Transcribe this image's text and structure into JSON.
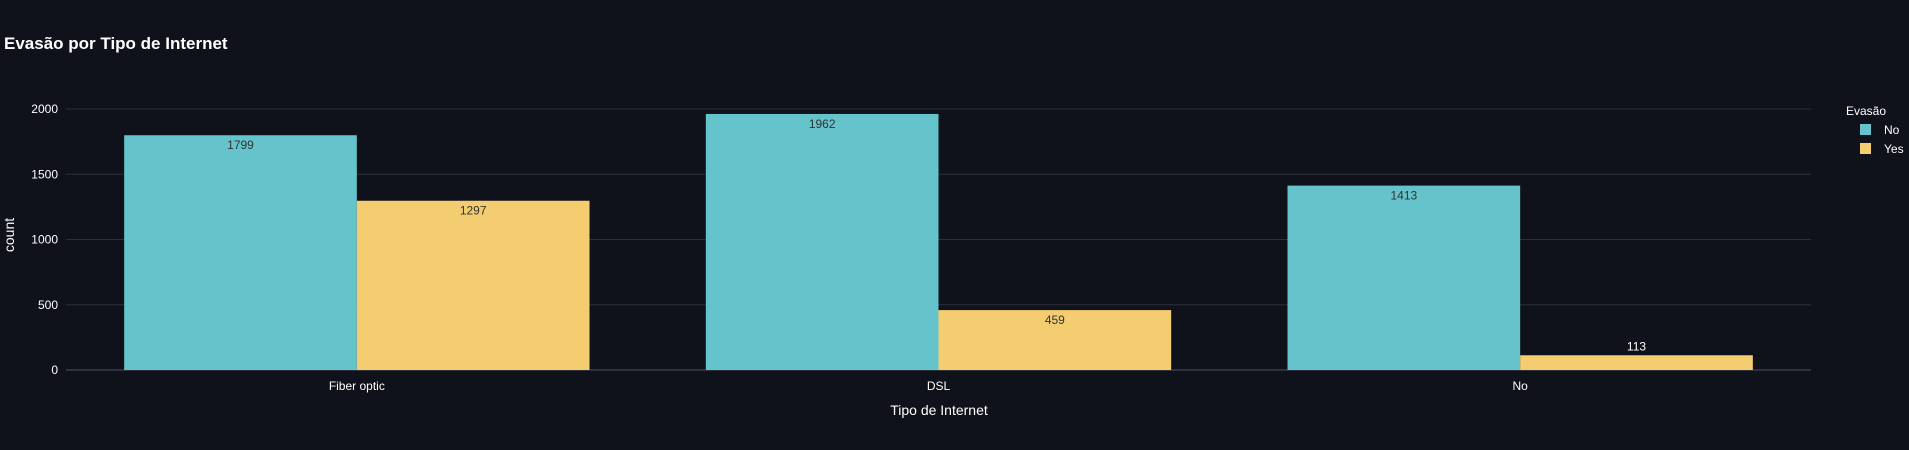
{
  "chart_data": {
    "type": "bar",
    "title": "Evasão por Tipo de Internet",
    "xlabel": "Tipo de Internet",
    "ylabel": "count",
    "categories": [
      "Fiber optic",
      "DSL",
      "No"
    ],
    "ylim": [
      0,
      2000
    ],
    "yticks": [
      0,
      500,
      1000,
      1500,
      2000
    ],
    "grid": true,
    "legend": {
      "title": "Evasão",
      "placement": "top-right"
    },
    "series": [
      {
        "name": "No",
        "color": "#65c3cb",
        "values": [
          1799,
          1962,
          1413
        ]
      },
      {
        "name": "Yes",
        "color": "#f5cd71",
        "values": [
          1297,
          459,
          113
        ]
      }
    ]
  },
  "colors": {
    "background": "#0f121a",
    "grid": "#2b303b",
    "text": "#ffffff",
    "label_inside": "#333333"
  }
}
